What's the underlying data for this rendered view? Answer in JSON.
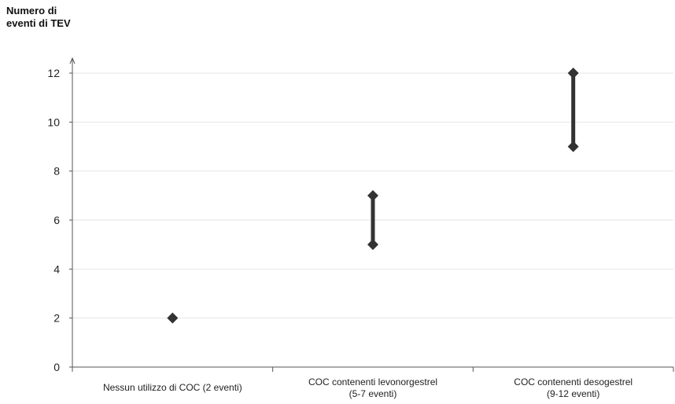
{
  "chart_data": {
    "type": "range",
    "ylabel": "Numero di\neventi di TEV",
    "xlabel": "",
    "ylim": [
      0,
      12
    ],
    "yticks": [
      0,
      2,
      4,
      6,
      8,
      10,
      12
    ],
    "grid": true,
    "categories": [
      [
        "Nessun utilizzo di COC (2 eventi)"
      ],
      [
        "COC contenenti levonorgestrel",
        "(5-7 eventi)"
      ],
      [
        "COC contenenti desogestrel",
        "(9-12 eventi)"
      ]
    ],
    "ranges": [
      {
        "low": 2,
        "high": 2
      },
      {
        "low": 5,
        "high": 7
      },
      {
        "low": 9,
        "high": 12
      }
    ],
    "marker_color": "#333333"
  }
}
